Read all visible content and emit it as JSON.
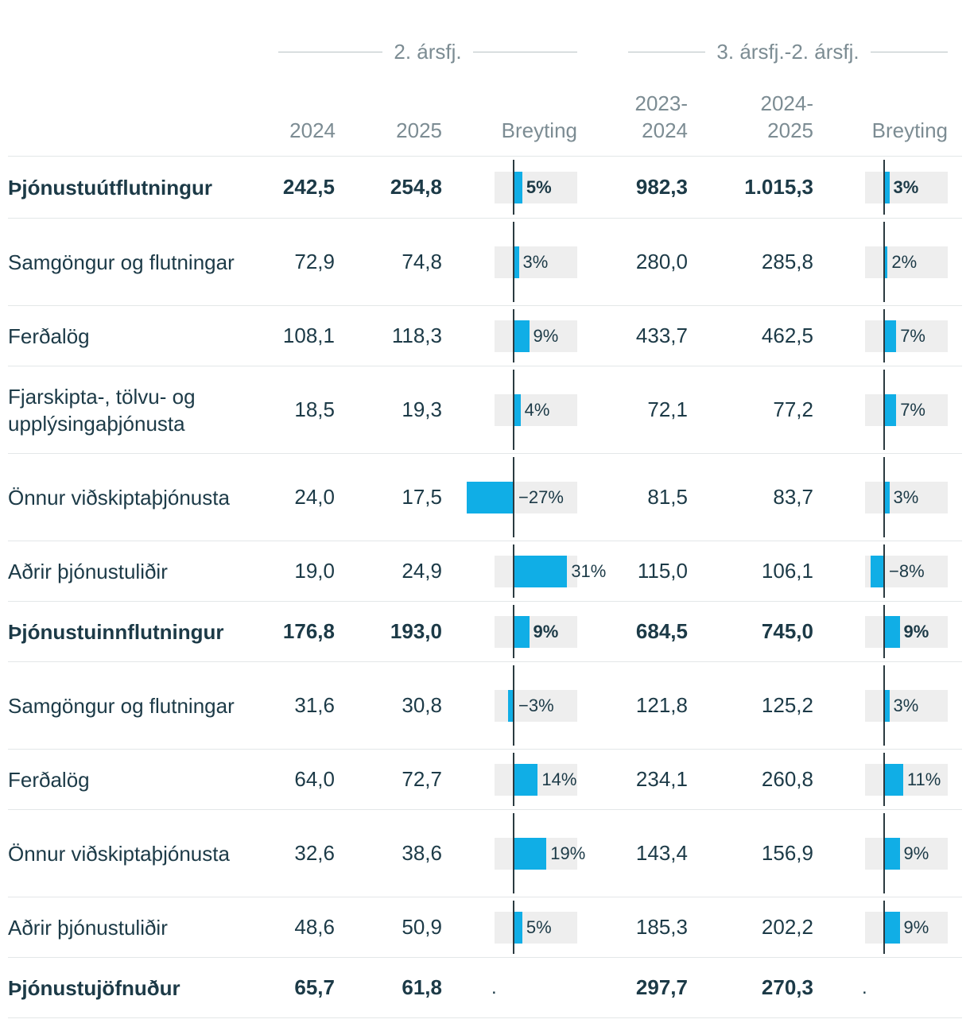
{
  "chart_data": {
    "type": "table",
    "group_headers": [
      "2. ársfj.",
      "3. ársfj.-2. ársfj."
    ],
    "columns": [
      "",
      "2024",
      "2025",
      "Breyting",
      "2023-\n2024",
      "2024-\n2025",
      "Breyting"
    ],
    "column_headers": {
      "q_2024": "2024",
      "q_2025": "2025",
      "q_change": "Breyting",
      "y_2023_2024": "2023-\n2024",
      "y_2024_2025": "2024-\n2025",
      "y_change": "Breyting"
    },
    "change_scale_max_pct": 35,
    "rows": [
      {
        "label": "Þjónustuútflutningur",
        "bold": true,
        "q_2024": "242,5",
        "q_2025": "254,8",
        "q_change": 5,
        "q_change_label": "5%",
        "y_2023_2024": "982,3",
        "y_2024_2025": "1.015,3",
        "y_change": 3,
        "y_change_label": "3%"
      },
      {
        "label": "Samgöngur og flutningar",
        "bold": false,
        "q_2024": "72,9",
        "q_2025": "74,8",
        "q_change": 3,
        "q_change_label": "3%",
        "y_2023_2024": "280,0",
        "y_2024_2025": "285,8",
        "y_change": 2,
        "y_change_label": "2%"
      },
      {
        "label": "Ferðalög",
        "bold": false,
        "q_2024": "108,1",
        "q_2025": "118,3",
        "q_change": 9,
        "q_change_label": "9%",
        "y_2023_2024": "433,7",
        "y_2024_2025": "462,5",
        "y_change": 7,
        "y_change_label": "7%"
      },
      {
        "label": "Fjarskipta-, tölvu- og upplýsingaþjónusta",
        "bold": false,
        "q_2024": "18,5",
        "q_2025": "19,3",
        "q_change": 4,
        "q_change_label": "4%",
        "y_2023_2024": "72,1",
        "y_2024_2025": "77,2",
        "y_change": 7,
        "y_change_label": "7%"
      },
      {
        "label": "Önnur viðskiptaþjónusta",
        "bold": false,
        "q_2024": "24,0",
        "q_2025": "17,5",
        "q_change": -27,
        "q_change_label": "−27%",
        "y_2023_2024": "81,5",
        "y_2024_2025": "83,7",
        "y_change": 3,
        "y_change_label": "3%"
      },
      {
        "label": "Aðrir þjónustuliðir",
        "bold": false,
        "q_2024": "19,0",
        "q_2025": "24,9",
        "q_change": 31,
        "q_change_label": "31%",
        "y_2023_2024": "115,0",
        "y_2024_2025": "106,1",
        "y_change": -8,
        "y_change_label": "−8%"
      },
      {
        "label": "Þjónustuinnflutningur",
        "bold": true,
        "q_2024": "176,8",
        "q_2025": "193,0",
        "q_change": 9,
        "q_change_label": "9%",
        "y_2023_2024": "684,5",
        "y_2024_2025": "745,0",
        "y_change": 9,
        "y_change_label": "9%"
      },
      {
        "label": "Samgöngur og flutningar",
        "bold": false,
        "q_2024": "31,6",
        "q_2025": "30,8",
        "q_change": -3,
        "q_change_label": "−3%",
        "y_2023_2024": "121,8",
        "y_2024_2025": "125,2",
        "y_change": 3,
        "y_change_label": "3%"
      },
      {
        "label": "Ferðalög",
        "bold": false,
        "q_2024": "64,0",
        "q_2025": "72,7",
        "q_change": 14,
        "q_change_label": "14%",
        "y_2023_2024": "234,1",
        "y_2024_2025": "260,8",
        "y_change": 11,
        "y_change_label": "11%"
      },
      {
        "label": "Önnur viðskiptaþjónusta",
        "bold": false,
        "q_2024": "32,6",
        "q_2025": "38,6",
        "q_change": 19,
        "q_change_label": "19%",
        "y_2023_2024": "143,4",
        "y_2024_2025": "156,9",
        "y_change": 9,
        "y_change_label": "9%"
      },
      {
        "label": "Aðrir þjónustuliðir",
        "bold": false,
        "q_2024": "48,6",
        "q_2025": "50,9",
        "q_change": 5,
        "q_change_label": "5%",
        "y_2023_2024": "185,3",
        "y_2024_2025": "202,2",
        "y_change": 9,
        "y_change_label": "9%"
      },
      {
        "label": "Þjónustujöfnuður",
        "bold": true,
        "q_2024": "65,7",
        "q_2025": "61,8",
        "q_change": null,
        "q_change_label": ".",
        "y_2023_2024": "297,7",
        "y_2024_2025": "270,3",
        "y_change": null,
        "y_change_label": "."
      }
    ]
  },
  "colors": {
    "bar": "#10aee6",
    "bar_background": "#eeeeee",
    "axis": "#2b3a40",
    "text": "#1c3a47",
    "header_text": "#7c8c93"
  }
}
